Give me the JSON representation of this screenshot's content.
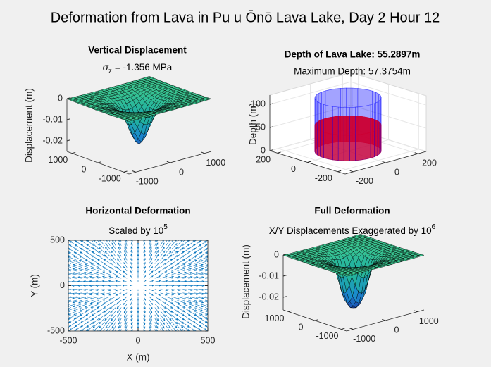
{
  "title": "Deformation from Lava in Pu u Ōnō Lava Lake, Day 2 Hour 12",
  "chart_data": [
    {
      "type": "surface",
      "title": "Vertical Displacement",
      "subtitle_parts": [
        "σ",
        "z",
        "= -1.356 MPa"
      ],
      "zlabel": "Displacement (m)",
      "grid": [
        -1200,
        -1100,
        -1000,
        -900,
        -800,
        -700,
        -600,
        -500,
        -400,
        -300,
        -200,
        -100,
        0,
        100,
        200,
        300,
        400,
        500,
        600,
        700,
        800,
        900,
        1000,
        1100,
        1200
      ],
      "r": [
        0,
        100,
        200,
        300,
        400,
        500,
        600,
        800,
        1000,
        1200,
        1700
      ],
      "values": [
        -0.0215,
        -0.02,
        -0.016,
        -0.011,
        -0.007,
        -0.0045,
        -0.003,
        -0.0015,
        -0.0008,
        -0.0004,
        -0.0001
      ],
      "xlim": [
        -1200,
        1200
      ],
      "ylim": [
        -1200,
        1200
      ],
      "zlim": [
        -0.025,
        0
      ],
      "xticks": [
        -1000,
        0,
        1000
      ],
      "yticks": [
        -1000,
        0,
        1000
      ],
      "zticks": [
        -0.02,
        -0.01,
        0
      ],
      "colormap": [
        "#1e3ca8",
        "#1a8ad0",
        "#20b0a0",
        "#3cc890"
      ],
      "edge_color": "#000000"
    },
    {
      "type": "cylinders",
      "title": "Depth of Lava Lake: 55.2897m",
      "subtitle": "Maximum Depth: 57.3754m",
      "zlabel": "Depth (m)",
      "cylinders": [
        {
          "radius": 150,
          "height": 115,
          "color": "#0000ff",
          "alpha": 0.2
        },
        {
          "radius": 150,
          "height": 55.2897,
          "color": "#ff0000",
          "alpha": 0.8
        }
      ],
      "xlim": [
        -250,
        250
      ],
      "ylim": [
        -250,
        250
      ],
      "zlim": [
        0,
        120
      ],
      "xticks": [
        -200,
        0,
        200
      ],
      "yticks": [
        -200,
        0,
        200
      ],
      "zticks": [
        0,
        50,
        100
      ],
      "box": true
    },
    {
      "type": "quiver",
      "title": "Horizontal Deformation",
      "subtitle_parts": [
        "Scaled by 10",
        "5"
      ],
      "xlabel": "X (m)",
      "ylabel": "Y (m)",
      "grid": [
        -480,
        -440,
        -400,
        -360,
        -320,
        -280,
        -240,
        -200,
        -160,
        -120,
        -80,
        -40,
        0,
        40,
        80,
        120,
        160,
        200,
        240,
        280,
        320,
        360,
        400,
        440,
        480
      ],
      "r": [
        0,
        50,
        150,
        300,
        500,
        700
      ],
      "lengths": [
        0,
        20,
        50,
        70,
        75,
        70
      ],
      "color": "#0072bd",
      "xlim": [
        -500,
        500
      ],
      "ylim": [
        -500,
        500
      ],
      "xticks": [
        -500,
        0,
        500
      ],
      "yticks": [
        -500,
        0,
        500
      ]
    },
    {
      "type": "surface",
      "title": "Full Deformation",
      "subtitle_parts": [
        "X/Y Displacements Exaggerated by 10",
        "6"
      ],
      "zlabel": "Displacement (m)",
      "grid": [
        -1200,
        -1100,
        -1000,
        -900,
        -800,
        -700,
        -600,
        -500,
        -400,
        -300,
        -200,
        -100,
        0,
        100,
        200,
        300,
        400,
        500,
        600,
        700,
        800,
        900,
        1000,
        1100,
        1200
      ],
      "r": [
        0,
        100,
        200,
        300,
        400,
        500,
        600,
        800,
        1000,
        1200,
        1700
      ],
      "values": [
        -0.025,
        -0.0245,
        -0.022,
        -0.017,
        -0.009,
        -0.004,
        -0.0025,
        -0.0012,
        -0.0006,
        -0.0003,
        -0.0001
      ],
      "xlim": [
        -1200,
        1200
      ],
      "ylim": [
        -1200,
        1200
      ],
      "zlim": [
        -0.026,
        0
      ],
      "xticks": [
        -1000,
        0,
        1000
      ],
      "yticks": [
        -1000,
        0,
        1000
      ],
      "zticks": [
        -0.02,
        -0.01,
        0
      ],
      "colormap": [
        "#1e3ca8",
        "#1a8ad0",
        "#20b0a0",
        "#3cc890"
      ],
      "edge_color": "#000000"
    }
  ]
}
